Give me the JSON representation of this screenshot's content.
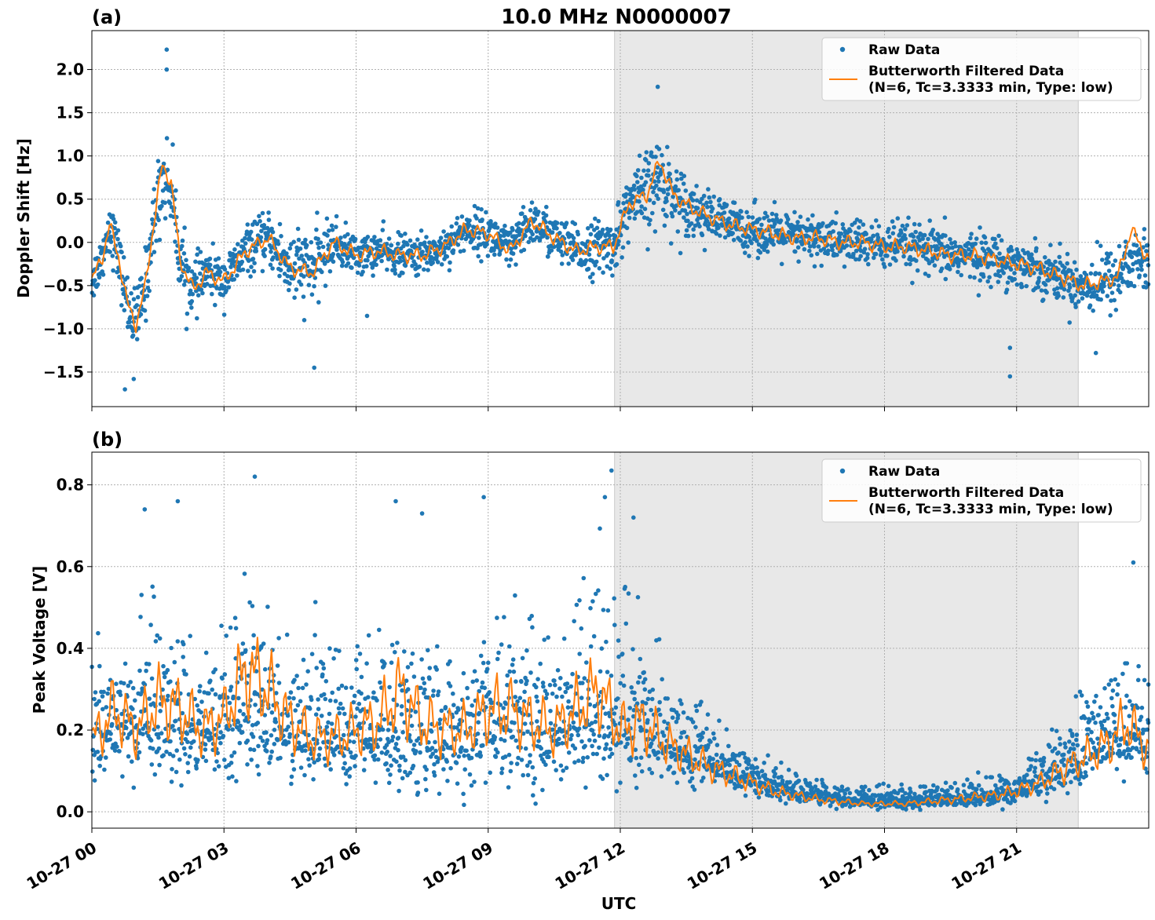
{
  "figure": {
    "title": "10.0 MHz N0000007",
    "xlabel": "UTC"
  },
  "chart_data": [
    {
      "type": "scatter",
      "panel_label": "(a)",
      "ylabel": "Doppler Shift [Hz]",
      "xlim": [
        "10-27 00:00",
        "10-28 00:00"
      ],
      "ylim": [
        -1.9,
        2.45
      ],
      "yticks": [
        "2.0",
        "1.5",
        "1.0",
        "0.5",
        "0.0",
        "−0.5",
        "−1.0",
        "−1.5"
      ],
      "ytick_values": [
        2.0,
        1.5,
        1.0,
        0.5,
        0.0,
        -0.5,
        -1.0,
        -1.5
      ],
      "xticks": [
        "10-27 00",
        "10-27 03",
        "10-27 06",
        "10-27 09",
        "10-27 12",
        "10-27 15",
        "10-27 18",
        "10-27 21"
      ],
      "xtick_hours": [
        0,
        3,
        6,
        9,
        12,
        15,
        18,
        21
      ],
      "grid": true,
      "shaded_region_hours": [
        11.87,
        22.4
      ],
      "legend": {
        "placement": "upper right",
        "entries": [
          "Raw Data",
          "Butterworth Filtered Data",
          "(N=6, Tc=3.3333 min, Type: low)"
        ]
      },
      "series": [
        {
          "name": "Raw Data",
          "style": "scatter",
          "color": "#1f77b4",
          "x_hours": [
            0,
            0.25,
            0.4,
            0.6,
            0.8,
            1.0,
            1.2,
            1.4,
            1.6,
            1.8,
            2.0,
            2.3,
            2.6,
            3.0,
            3.5,
            4.0,
            4.5,
            5.0,
            5.5,
            6.0,
            6.5,
            7.0,
            7.5,
            8.0,
            8.5,
            9.0,
            9.5,
            10.0,
            10.5,
            11.0,
            11.5,
            11.85,
            12.2,
            12.6,
            12.9,
            13.2,
            13.6,
            14.0,
            14.5,
            15.0,
            15.5,
            16.0,
            16.5,
            17.0,
            17.5,
            18.0,
            18.5,
            19.0,
            19.5,
            20.0,
            20.5,
            21.0,
            21.5,
            22.0,
            22.5,
            23.0,
            23.3,
            23.6,
            24.0
          ],
          "y_center": [
            -0.45,
            -0.15,
            0.2,
            -0.15,
            -0.7,
            -0.95,
            -0.55,
            0.2,
            0.75,
            0.65,
            -0.2,
            -0.55,
            -0.35,
            -0.45,
            -0.1,
            0.05,
            -0.3,
            -0.3,
            0.0,
            -0.15,
            -0.1,
            -0.15,
            -0.15,
            -0.05,
            0.15,
            0.1,
            -0.1,
            0.25,
            0.05,
            -0.1,
            -0.05,
            -0.05,
            0.45,
            0.55,
            0.75,
            0.55,
            0.4,
            0.3,
            0.2,
            0.15,
            0.1,
            0.05,
            0.05,
            0.0,
            0.0,
            -0.05,
            -0.05,
            -0.1,
            -0.15,
            -0.15,
            -0.2,
            -0.25,
            -0.3,
            -0.4,
            -0.5,
            -0.45,
            -0.4,
            -0.2,
            -0.25
          ],
          "spread": [
            0.3,
            0.3,
            0.35,
            0.35,
            0.4,
            0.4,
            0.45,
            0.5,
            0.55,
            0.5,
            0.45,
            0.35,
            0.3,
            0.3,
            0.3,
            0.3,
            0.5,
            0.45,
            0.3,
            0.25,
            0.25,
            0.25,
            0.25,
            0.25,
            0.25,
            0.3,
            0.3,
            0.3,
            0.3,
            0.3,
            0.35,
            0.35,
            0.4,
            0.55,
            0.55,
            0.45,
            0.35,
            0.3,
            0.3,
            0.3,
            0.3,
            0.3,
            0.3,
            0.3,
            0.3,
            0.3,
            0.3,
            0.3,
            0.3,
            0.3,
            0.3,
            0.3,
            0.3,
            0.3,
            0.35,
            0.4,
            0.4,
            0.45,
            0.4
          ],
          "outliers": [
            [
              1.7,
              2.23
            ],
            [
              1.7,
              2.0
            ],
            [
              0.75,
              -1.7
            ],
            [
              0.95,
              -1.58
            ],
            [
              12.85,
              1.8
            ],
            [
              20.85,
              -1.55
            ],
            [
              20.85,
              -1.22
            ],
            [
              5.05,
              -1.45
            ],
            [
              6.25,
              -0.85
            ],
            [
              22.8,
              -1.28
            ]
          ]
        },
        {
          "name": "Butterworth Filtered Data",
          "style": "line",
          "color": "#ff7f0e",
          "x_hours": [
            0,
            0.25,
            0.4,
            0.6,
            0.8,
            1.0,
            1.2,
            1.4,
            1.6,
            1.8,
            2.0,
            2.3,
            2.6,
            3.0,
            3.5,
            4.0,
            4.5,
            5.0,
            5.5,
            6.0,
            6.5,
            7.0,
            7.5,
            8.0,
            8.5,
            9.0,
            9.5,
            10.0,
            10.5,
            11.0,
            11.5,
            11.85,
            12.2,
            12.6,
            12.9,
            13.2,
            13.6,
            14.0,
            14.5,
            15.0,
            15.5,
            16.0,
            16.5,
            17.0,
            17.5,
            18.0,
            18.5,
            19.0,
            19.5,
            20.0,
            20.5,
            21.0,
            21.5,
            22.0,
            22.5,
            23.0,
            23.3,
            23.6,
            24.0
          ],
          "values": [
            -0.45,
            -0.15,
            0.2,
            -0.15,
            -0.7,
            -0.95,
            -0.55,
            0.2,
            0.9,
            0.7,
            -0.2,
            -0.55,
            -0.35,
            -0.45,
            -0.1,
            0.05,
            -0.3,
            -0.35,
            0.0,
            -0.15,
            -0.1,
            -0.15,
            -0.15,
            -0.05,
            0.15,
            0.1,
            -0.1,
            0.25,
            0.05,
            -0.1,
            -0.05,
            -0.05,
            0.45,
            0.55,
            0.95,
            0.55,
            0.4,
            0.3,
            0.2,
            0.15,
            0.1,
            0.05,
            0.05,
            0.0,
            0.0,
            -0.05,
            -0.05,
            -0.1,
            -0.15,
            -0.15,
            -0.2,
            -0.25,
            -0.3,
            -0.4,
            -0.5,
            -0.45,
            -0.4,
            0.15,
            -0.2
          ]
        }
      ]
    },
    {
      "type": "scatter",
      "panel_label": "(b)",
      "ylabel": "Peak Voltage [V]",
      "xlim": [
        "10-27 00:00",
        "10-28 00:00"
      ],
      "ylim": [
        -0.04,
        0.88
      ],
      "yticks": [
        "0.8",
        "0.6",
        "0.4",
        "0.2",
        "0.0"
      ],
      "ytick_values": [
        0.8,
        0.6,
        0.4,
        0.2,
        0.0
      ],
      "xticks": [
        "10-27 00",
        "10-27 03",
        "10-27 06",
        "10-27 09",
        "10-27 12",
        "10-27 15",
        "10-27 18",
        "10-27 21"
      ],
      "xtick_hours": [
        0,
        3,
        6,
        9,
        12,
        15,
        18,
        21
      ],
      "grid": true,
      "shaded_region_hours": [
        11.87,
        22.4
      ],
      "legend": {
        "placement": "upper right",
        "entries": [
          "Raw Data",
          "Butterworth Filtered Data",
          "(N=6, Tc=3.3333 min, Type: low)"
        ]
      },
      "series": [
        {
          "name": "Raw Data",
          "style": "scatter",
          "color": "#1f77b4",
          "x_hours": [
            0,
            0.5,
            1.0,
            1.5,
            2.0,
            2.5,
            3.0,
            3.5,
            4.0,
            4.5,
            5.0,
            5.5,
            6.0,
            6.5,
            7.0,
            7.5,
            8.0,
            8.5,
            9.0,
            9.5,
            10.0,
            10.5,
            11.0,
            11.5,
            12.0,
            12.5,
            13.0,
            13.5,
            14.0,
            14.5,
            15.0,
            15.5,
            16.0,
            16.5,
            17.0,
            17.5,
            18.0,
            18.5,
            19.0,
            19.5,
            20.0,
            20.5,
            21.0,
            21.5,
            22.0,
            22.5,
            23.0,
            23.5,
            24.0
          ],
          "y_center": [
            0.2,
            0.22,
            0.2,
            0.21,
            0.22,
            0.2,
            0.22,
            0.25,
            0.22,
            0.2,
            0.18,
            0.17,
            0.18,
            0.18,
            0.2,
            0.18,
            0.17,
            0.17,
            0.2,
            0.2,
            0.2,
            0.2,
            0.22,
            0.25,
            0.22,
            0.2,
            0.17,
            0.14,
            0.12,
            0.1,
            0.08,
            0.06,
            0.05,
            0.04,
            0.03,
            0.03,
            0.025,
            0.025,
            0.03,
            0.03,
            0.035,
            0.04,
            0.05,
            0.07,
            0.1,
            0.13,
            0.17,
            0.2,
            0.17
          ],
          "spread": [
            0.15,
            0.18,
            0.2,
            0.22,
            0.2,
            0.18,
            0.2,
            0.25,
            0.22,
            0.2,
            0.2,
            0.18,
            0.18,
            0.2,
            0.25,
            0.22,
            0.2,
            0.2,
            0.22,
            0.22,
            0.22,
            0.2,
            0.22,
            0.28,
            0.25,
            0.2,
            0.15,
            0.12,
            0.1,
            0.08,
            0.06,
            0.05,
            0.04,
            0.035,
            0.03,
            0.03,
            0.03,
            0.03,
            0.03,
            0.03,
            0.035,
            0.04,
            0.05,
            0.07,
            0.09,
            0.12,
            0.15,
            0.18,
            0.15
          ],
          "outliers": [
            [
              3.7,
              0.82
            ],
            [
              11.8,
              0.835
            ],
            [
              1.2,
              0.74
            ],
            [
              1.95,
              0.76
            ],
            [
              6.9,
              0.76
            ],
            [
              8.9,
              0.77
            ],
            [
              11.65,
              0.77
            ],
            [
              12.3,
              0.72
            ],
            [
              7.5,
              0.73
            ],
            [
              23.65,
              0.61
            ]
          ]
        },
        {
          "name": "Butterworth Filtered Data",
          "style": "line",
          "color": "#ff7f0e",
          "x_hours": [
            0,
            0.5,
            1.0,
            1.5,
            2.0,
            2.5,
            3.0,
            3.5,
            4.0,
            4.5,
            5.0,
            5.5,
            6.0,
            6.5,
            7.0,
            7.5,
            8.0,
            8.5,
            9.0,
            9.5,
            10.0,
            10.5,
            11.0,
            11.5,
            12.0,
            12.5,
            13.0,
            13.5,
            14.0,
            14.5,
            15.0,
            15.5,
            16.0,
            16.5,
            17.0,
            17.5,
            18.0,
            18.5,
            19.0,
            19.5,
            20.0,
            20.5,
            21.0,
            21.5,
            22.0,
            22.5,
            23.0,
            23.5,
            24.0
          ],
          "values": [
            0.17,
            0.25,
            0.2,
            0.27,
            0.25,
            0.2,
            0.23,
            0.35,
            0.3,
            0.22,
            0.18,
            0.18,
            0.2,
            0.22,
            0.3,
            0.22,
            0.2,
            0.2,
            0.25,
            0.25,
            0.22,
            0.2,
            0.25,
            0.3,
            0.2,
            0.22,
            0.17,
            0.14,
            0.11,
            0.09,
            0.07,
            0.05,
            0.04,
            0.03,
            0.025,
            0.02,
            0.02,
            0.02,
            0.025,
            0.03,
            0.035,
            0.04,
            0.05,
            0.07,
            0.1,
            0.13,
            0.16,
            0.22,
            0.15
          ]
        }
      ]
    }
  ]
}
